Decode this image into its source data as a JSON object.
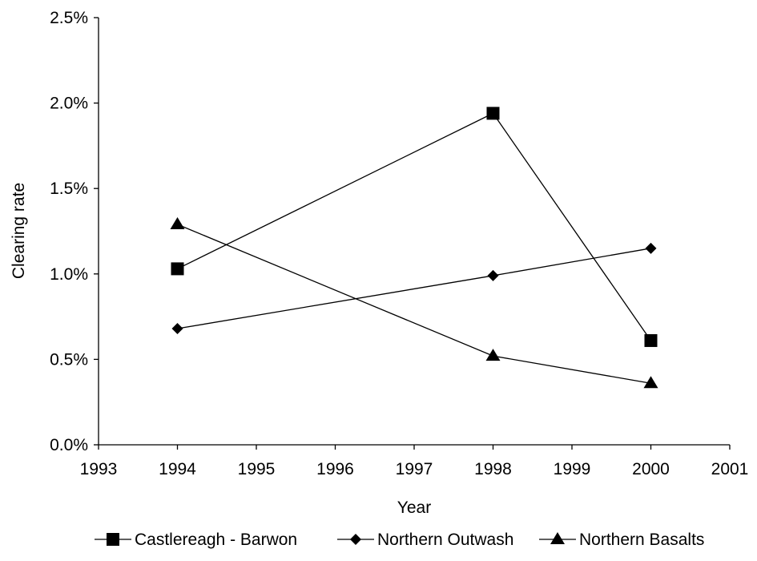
{
  "chart_data": {
    "type": "line",
    "title": "",
    "xlabel": "Year",
    "ylabel": "Clearing rate",
    "xlim": [
      1993,
      2001
    ],
    "ylim": [
      0,
      0.025
    ],
    "x_ticks": [
      1993,
      1994,
      1995,
      1996,
      1997,
      1998,
      1999,
      2000,
      2001
    ],
    "x_tick_labels": [
      "1993",
      "1994",
      "1995",
      "1996",
      "1997",
      "1998",
      "1999",
      "2000",
      "2001"
    ],
    "y_ticks": [
      0,
      0.005,
      0.01,
      0.015,
      0.02,
      0.025
    ],
    "y_tick_labels": [
      "0.0%",
      "0.5%",
      "1.0%",
      "1.5%",
      "2.0%",
      "2.5%"
    ],
    "grid": false,
    "legend_position": "bottom",
    "series": [
      {
        "name": "Castlereagh - Barwon",
        "marker": "square",
        "color": "#000000",
        "x": [
          1994,
          1998,
          2000
        ],
        "y": [
          0.0103,
          0.0194,
          0.0061
        ]
      },
      {
        "name": "Northern Outwash",
        "marker": "diamond",
        "color": "#000000",
        "x": [
          1994,
          1998,
          2000
        ],
        "y": [
          0.0068,
          0.0099,
          0.0115
        ]
      },
      {
        "name": "Northern Basalts",
        "marker": "triangle",
        "color": "#000000",
        "x": [
          1994,
          1998,
          2000
        ],
        "y": [
          0.0129,
          0.0052,
          0.0036
        ]
      }
    ]
  }
}
